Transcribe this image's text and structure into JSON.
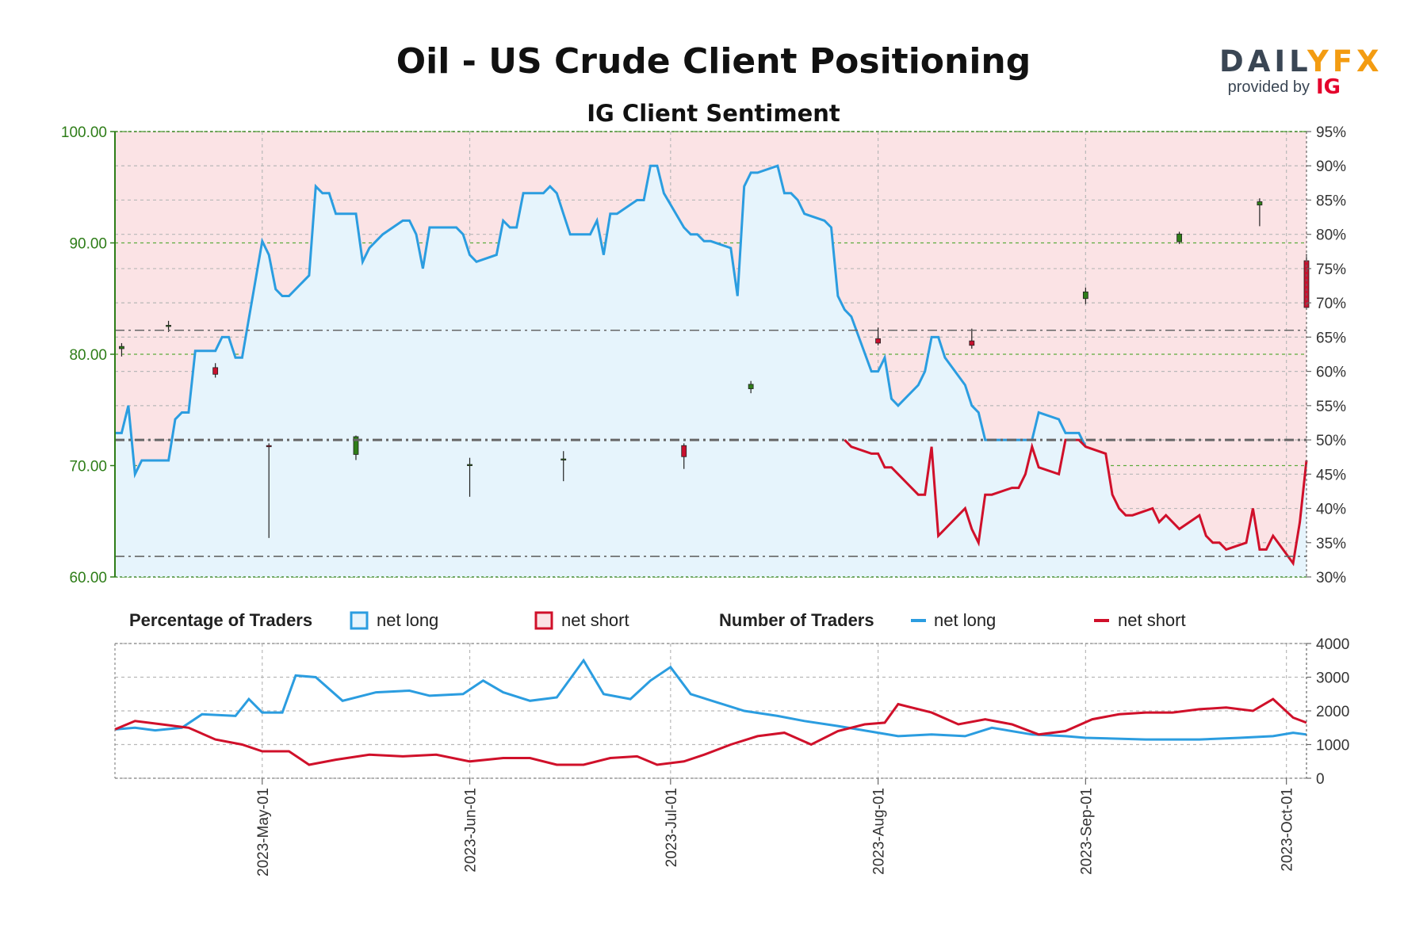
{
  "header": {
    "title": "Oil - US Crude Client Positioning",
    "subtitle": "IG Client Sentiment"
  },
  "brand": {
    "logo_left": "DAIL",
    "logo_mid": "Y",
    "logo_right": "FX",
    "provided_by": "provided by",
    "ig": "IG"
  },
  "legend": {
    "pct_heading": "Percentage of Traders",
    "pct_long": "net long",
    "pct_short": "net short",
    "num_heading": "Number of Traders",
    "num_long": "net long",
    "num_short": "net short"
  },
  "colors": {
    "long_line": "#2b9de0",
    "long_fill": "#e6f4fc",
    "short_line": "#d0102a",
    "short_fill": "#fbe3e5",
    "candle_up": "#2e7d18",
    "candle_down": "#c8102e",
    "axis_green": "#2e7d18",
    "fx_orange": "#f39c12",
    "ig_red": "#e4002b"
  },
  "chart_data": [
    {
      "type": "candlestick+area",
      "title": "IG Client Sentiment",
      "left_axis": {
        "ylim": [
          60,
          100
        ],
        "ticks": [
          "60.00",
          "70.00",
          "80.00",
          "90.00",
          "100.00"
        ]
      },
      "right_axis": {
        "ylim": [
          30,
          95
        ],
        "ticks": [
          "30%",
          "35%",
          "40%",
          "45%",
          "50%",
          "55%",
          "60%",
          "65%",
          "70%",
          "75%",
          "80%",
          "85%",
          "90%",
          "95%"
        ]
      },
      "date_ticks": [
        "2023-May-01",
        "2023-Jun-01",
        "2023-Jul-01",
        "2023-Aug-01",
        "2023-Sep-01",
        "2023-Oct-01"
      ],
      "date_range": [
        "2023-04-09",
        "2023-10-04"
      ],
      "reference_lines": [
        66,
        50,
        33
      ],
      "net_long_pct": [
        [
          "2023-04-09",
          51
        ],
        [
          "2023-04-10",
          51
        ],
        [
          "2023-04-11",
          55
        ],
        [
          "2023-04-12",
          45
        ],
        [
          "2023-04-13",
          47
        ],
        [
          "2023-04-14",
          47
        ],
        [
          "2023-04-17",
          47
        ],
        [
          "2023-04-18",
          53
        ],
        [
          "2023-04-19",
          54
        ],
        [
          "2023-04-20",
          54
        ],
        [
          "2023-04-21",
          63
        ],
        [
          "2023-04-24",
          63
        ],
        [
          "2023-04-25",
          65
        ],
        [
          "2023-04-26",
          65
        ],
        [
          "2023-04-27",
          62
        ],
        [
          "2023-04-28",
          62
        ],
        [
          "2023-05-01",
          79
        ],
        [
          "2023-05-02",
          77
        ],
        [
          "2023-05-03",
          72
        ],
        [
          "2023-05-04",
          71
        ],
        [
          "2023-05-05",
          71
        ],
        [
          "2023-05-08",
          74
        ],
        [
          "2023-05-09",
          87
        ],
        [
          "2023-05-10",
          86
        ],
        [
          "2023-05-11",
          86
        ],
        [
          "2023-05-12",
          83
        ],
        [
          "2023-05-15",
          83
        ],
        [
          "2023-05-16",
          76
        ],
        [
          "2023-05-17",
          78
        ],
        [
          "2023-05-18",
          79
        ],
        [
          "2023-05-19",
          80
        ],
        [
          "2023-05-22",
          82
        ],
        [
          "2023-05-23",
          82
        ],
        [
          "2023-05-24",
          80
        ],
        [
          "2023-05-25",
          75
        ],
        [
          "2023-05-26",
          81
        ],
        [
          "2023-05-29",
          81
        ],
        [
          "2023-05-30",
          81
        ],
        [
          "2023-05-31",
          80
        ],
        [
          "2023-06-01",
          77
        ],
        [
          "2023-06-02",
          76
        ],
        [
          "2023-06-05",
          77
        ],
        [
          "2023-06-06",
          82
        ],
        [
          "2023-06-07",
          81
        ],
        [
          "2023-06-08",
          81
        ],
        [
          "2023-06-09",
          86
        ],
        [
          "2023-06-12",
          86
        ],
        [
          "2023-06-13",
          87
        ],
        [
          "2023-06-14",
          86
        ],
        [
          "2023-06-15",
          83
        ],
        [
          "2023-06-16",
          80
        ],
        [
          "2023-06-19",
          80
        ],
        [
          "2023-06-20",
          82
        ],
        [
          "2023-06-21",
          77
        ],
        [
          "2023-06-22",
          83
        ],
        [
          "2023-06-23",
          83
        ],
        [
          "2023-06-26",
          85
        ],
        [
          "2023-06-27",
          85
        ],
        [
          "2023-06-28",
          90
        ],
        [
          "2023-06-29",
          90
        ],
        [
          "2023-06-30",
          86
        ],
        [
          "2023-07-03",
          81
        ],
        [
          "2023-07-04",
          80
        ],
        [
          "2023-07-05",
          80
        ],
        [
          "2023-07-06",
          79
        ],
        [
          "2023-07-07",
          79
        ],
        [
          "2023-07-10",
          78
        ],
        [
          "2023-07-11",
          71
        ],
        [
          "2023-07-12",
          87
        ],
        [
          "2023-07-13",
          89
        ],
        [
          "2023-07-14",
          89
        ],
        [
          "2023-07-17",
          90
        ],
        [
          "2023-07-18",
          86
        ],
        [
          "2023-07-19",
          86
        ],
        [
          "2023-07-20",
          85
        ],
        [
          "2023-07-21",
          83
        ],
        [
          "2023-07-24",
          82
        ],
        [
          "2023-07-25",
          81
        ],
        [
          "2023-07-26",
          71
        ],
        [
          "2023-07-27",
          69
        ],
        [
          "2023-07-28",
          68
        ],
        [
          "2023-07-31",
          60
        ],
        [
          "2023-08-01",
          60
        ],
        [
          "2023-08-02",
          62
        ],
        [
          "2023-08-03",
          56
        ],
        [
          "2023-08-04",
          55
        ],
        [
          "2023-08-07",
          58
        ],
        [
          "2023-08-08",
          60
        ],
        [
          "2023-08-09",
          65
        ],
        [
          "2023-08-10",
          65
        ],
        [
          "2023-08-11",
          62
        ],
        [
          "2023-08-14",
          58
        ],
        [
          "2023-08-15",
          55
        ],
        [
          "2023-08-16",
          54
        ],
        [
          "2023-08-17",
          50
        ],
        [
          "2023-08-18",
          50
        ],
        [
          "2023-08-21",
          50
        ],
        [
          "2023-08-22",
          50
        ],
        [
          "2023-08-23",
          50
        ],
        [
          "2023-08-24",
          50
        ],
        [
          "2023-08-25",
          54
        ],
        [
          "2023-08-28",
          53
        ],
        [
          "2023-08-29",
          51
        ],
        [
          "2023-08-30",
          51
        ],
        [
          "2023-08-31",
          51
        ],
        [
          "2023-09-01",
          49
        ]
      ],
      "net_short_pct_tail": [
        [
          "2023-07-27",
          50
        ],
        [
          "2023-07-28",
          49
        ],
        [
          "2023-07-31",
          48
        ],
        [
          "2023-08-01",
          48
        ],
        [
          "2023-08-02",
          46
        ],
        [
          "2023-08-03",
          46
        ],
        [
          "2023-08-04",
          45
        ],
        [
          "2023-08-07",
          42
        ],
        [
          "2023-08-08",
          42
        ],
        [
          "2023-08-09",
          49
        ],
        [
          "2023-08-10",
          36
        ],
        [
          "2023-08-11",
          37
        ],
        [
          "2023-08-14",
          40
        ],
        [
          "2023-08-15",
          37
        ],
        [
          "2023-08-16",
          35
        ],
        [
          "2023-08-17",
          42
        ],
        [
          "2023-08-18",
          42
        ],
        [
          "2023-08-21",
          43
        ],
        [
          "2023-08-22",
          43
        ],
        [
          "2023-08-23",
          45
        ],
        [
          "2023-08-24",
          49
        ],
        [
          "2023-08-25",
          46
        ],
        [
          "2023-08-28",
          45
        ],
        [
          "2023-08-29",
          50
        ],
        [
          "2023-08-30",
          50
        ],
        [
          "2023-08-31",
          50
        ],
        [
          "2023-09-01",
          49
        ],
        [
          "2023-09-04",
          48
        ],
        [
          "2023-09-05",
          42
        ],
        [
          "2023-09-06",
          40
        ],
        [
          "2023-09-07",
          39
        ],
        [
          "2023-09-08",
          39
        ],
        [
          "2023-09-11",
          40
        ],
        [
          "2023-09-12",
          38
        ],
        [
          "2023-09-13",
          39
        ],
        [
          "2023-09-14",
          38
        ],
        [
          "2023-09-15",
          37
        ],
        [
          "2023-09-18",
          39
        ],
        [
          "2023-09-19",
          36
        ],
        [
          "2023-09-20",
          35
        ],
        [
          "2023-09-21",
          35
        ],
        [
          "2023-09-22",
          34
        ],
        [
          "2023-09-25",
          35
        ],
        [
          "2023-09-26",
          40
        ],
        [
          "2023-09-27",
          34
        ],
        [
          "2023-09-28",
          34
        ],
        [
          "2023-09-29",
          36
        ],
        [
          "2023-10-02",
          32
        ],
        [
          "2023-10-03",
          38
        ],
        [
          "2023-10-04",
          47
        ]
      ],
      "ohlc_sample": [
        [
          "2023-04-10",
          80.5,
          81.0,
          79.8,
          80.7
        ],
        [
          "2023-04-17",
          82.5,
          83.0,
          82.0,
          82.6
        ],
        [
          "2023-04-24",
          78.8,
          79.2,
          77.9,
          78.2
        ],
        [
          "2023-05-02",
          71.8,
          72.0,
          63.5,
          71.7
        ],
        [
          "2023-05-15",
          71.0,
          72.7,
          70.5,
          72.6
        ],
        [
          "2023-06-01",
          70.1,
          70.7,
          67.2,
          70.1
        ],
        [
          "2023-06-15",
          70.6,
          71.3,
          68.6,
          70.6
        ],
        [
          "2023-07-03",
          71.8,
          72.0,
          69.7,
          70.8
        ],
        [
          "2023-07-13",
          76.9,
          77.6,
          76.5,
          77.3
        ],
        [
          "2023-08-01",
          81.4,
          82.4,
          80.8,
          81.0
        ],
        [
          "2023-08-15",
          81.2,
          82.3,
          80.5,
          80.8
        ],
        [
          "2023-09-01",
          85.0,
          86.0,
          84.5,
          85.6
        ],
        [
          "2023-09-15",
          90.1,
          91.0,
          89.9,
          90.8
        ],
        [
          "2023-09-27",
          93.4,
          94.0,
          91.5,
          93.7
        ],
        [
          "2023-10-04",
          88.4,
          89.0,
          84.0,
          84.2
        ]
      ]
    },
    {
      "type": "line",
      "title": "Number of Traders",
      "ylim": [
        0,
        4000
      ],
      "ticks": [
        "0",
        "1000",
        "2000",
        "3000",
        "4000"
      ],
      "series": [
        {
          "name": "net long",
          "values": [
            [
              "2023-04-09",
              1450
            ],
            [
              "2023-04-12",
              1500
            ],
            [
              "2023-04-15",
              1420
            ],
            [
              "2023-04-19",
              1500
            ],
            [
              "2023-04-22",
              1900
            ],
            [
              "2023-04-27",
              1850
            ],
            [
              "2023-04-29",
              2350
            ],
            [
              "2023-05-01",
              1950
            ],
            [
              "2023-05-04",
              1950
            ],
            [
              "2023-05-06",
              3050
            ],
            [
              "2023-05-09",
              3000
            ],
            [
              "2023-05-13",
              2300
            ],
            [
              "2023-05-18",
              2550
            ],
            [
              "2023-05-23",
              2600
            ],
            [
              "2023-05-26",
              2450
            ],
            [
              "2023-05-31",
              2500
            ],
            [
              "2023-06-03",
              2900
            ],
            [
              "2023-06-06",
              2550
            ],
            [
              "2023-06-10",
              2300
            ],
            [
              "2023-06-14",
              2400
            ],
            [
              "2023-06-18",
              3500
            ],
            [
              "2023-06-21",
              2500
            ],
            [
              "2023-06-25",
              2350
            ],
            [
              "2023-06-28",
              2900
            ],
            [
              "2023-07-01",
              3300
            ],
            [
              "2023-07-04",
              2500
            ],
            [
              "2023-07-08",
              2250
            ],
            [
              "2023-07-12",
              2000
            ],
            [
              "2023-07-17",
              1850
            ],
            [
              "2023-07-21",
              1700
            ],
            [
              "2023-07-26",
              1550
            ],
            [
              "2023-08-01",
              1350
            ],
            [
              "2023-08-04",
              1250
            ],
            [
              "2023-08-09",
              1300
            ],
            [
              "2023-08-14",
              1250
            ],
            [
              "2023-08-18",
              1500
            ],
            [
              "2023-08-24",
              1300
            ],
            [
              "2023-08-29",
              1250
            ],
            [
              "2023-09-01",
              1200
            ],
            [
              "2023-09-10",
              1150
            ],
            [
              "2023-09-18",
              1150
            ],
            [
              "2023-09-24",
              1200
            ],
            [
              "2023-09-29",
              1250
            ],
            [
              "2023-10-02",
              1350
            ],
            [
              "2023-10-04",
              1300
            ]
          ]
        },
        {
          "name": "net short",
          "values": [
            [
              "2023-04-09",
              1450
            ],
            [
              "2023-04-12",
              1700
            ],
            [
              "2023-04-16",
              1600
            ],
            [
              "2023-04-20",
              1500
            ],
            [
              "2023-04-24",
              1150
            ],
            [
              "2023-04-28",
              1000
            ],
            [
              "2023-05-01",
              800
            ],
            [
              "2023-05-05",
              800
            ],
            [
              "2023-05-08",
              400
            ],
            [
              "2023-05-12",
              550
            ],
            [
              "2023-05-17",
              700
            ],
            [
              "2023-05-22",
              650
            ],
            [
              "2023-05-27",
              700
            ],
            [
              "2023-06-01",
              500
            ],
            [
              "2023-06-06",
              600
            ],
            [
              "2023-06-10",
              600
            ],
            [
              "2023-06-14",
              400
            ],
            [
              "2023-06-18",
              400
            ],
            [
              "2023-06-22",
              600
            ],
            [
              "2023-06-26",
              650
            ],
            [
              "2023-06-29",
              400
            ],
            [
              "2023-07-03",
              500
            ],
            [
              "2023-07-06",
              700
            ],
            [
              "2023-07-10",
              1000
            ],
            [
              "2023-07-14",
              1250
            ],
            [
              "2023-07-18",
              1350
            ],
            [
              "2023-07-22",
              1000
            ],
            [
              "2023-07-26",
              1400
            ],
            [
              "2023-07-30",
              1600
            ],
            [
              "2023-08-02",
              1650
            ],
            [
              "2023-08-04",
              2200
            ],
            [
              "2023-08-09",
              1950
            ],
            [
              "2023-08-13",
              1600
            ],
            [
              "2023-08-17",
              1750
            ],
            [
              "2023-08-21",
              1600
            ],
            [
              "2023-08-25",
              1300
            ],
            [
              "2023-08-29",
              1400
            ],
            [
              "2023-09-02",
              1750
            ],
            [
              "2023-09-06",
              1900
            ],
            [
              "2023-09-10",
              1950
            ],
            [
              "2023-09-14",
              1950
            ],
            [
              "2023-09-18",
              2050
            ],
            [
              "2023-09-22",
              2100
            ],
            [
              "2023-09-26",
              2000
            ],
            [
              "2023-09-29",
              2350
            ],
            [
              "2023-10-02",
              1800
            ],
            [
              "2023-10-04",
              1650
            ]
          ]
        }
      ]
    }
  ]
}
